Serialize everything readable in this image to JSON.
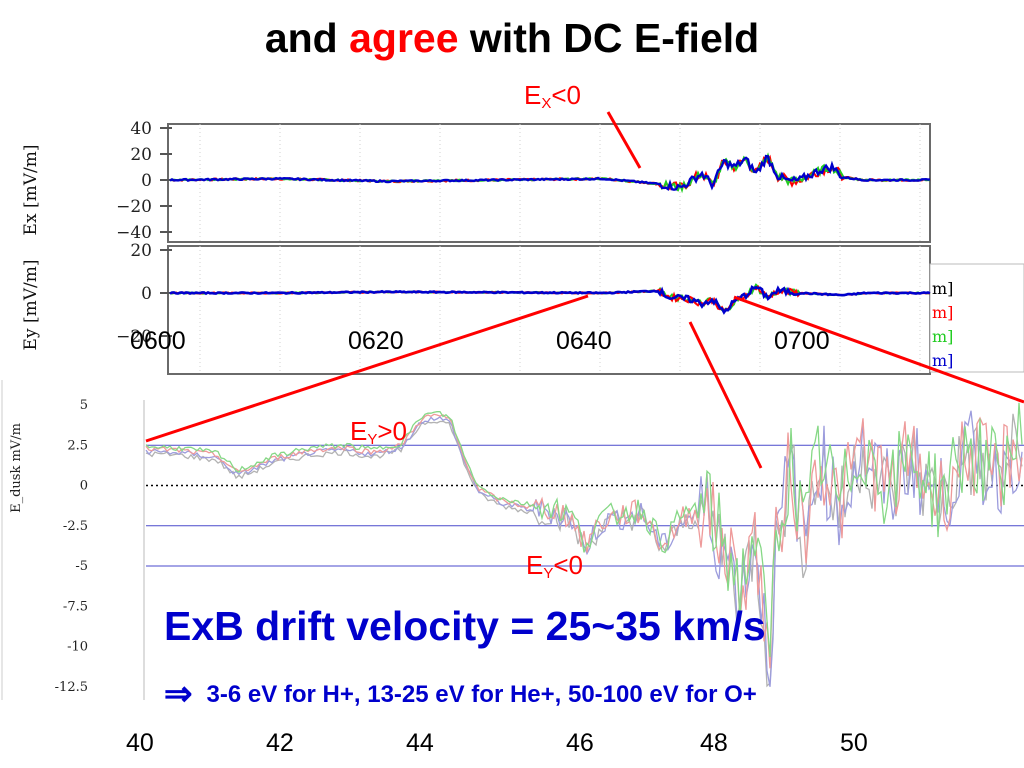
{
  "title": {
    "before": "and ",
    "highlight": "agree",
    "after": " with DC E-field"
  },
  "colors": {
    "red": "#ff0000",
    "blue": "#0000cc",
    "green": "#22cc22",
    "navy": "#1a1aa0",
    "refline": "#4a4acc"
  },
  "annotations": {
    "ex_neg": {
      "main": "E",
      "sub": "X",
      "rest": "<0"
    },
    "ey_pos": {
      "main": "E",
      "sub": "Y",
      "rest": ">0"
    },
    "ey_neg": {
      "main": "E",
      "sub": "Y",
      "rest": "<0"
    }
  },
  "headline": "ExB drift velocity = 25~35 km/s",
  "subline": {
    "arrow": "⇒",
    "text": "3-6 eV for H+, 13-25 eV for He+, 50-100 eV for O+"
  },
  "chart_data": [
    {
      "type": "line",
      "ylabel": "Ex [mV/m]",
      "ylim": [
        -40,
        40
      ],
      "yticks": [
        "40",
        "20",
        "0",
        "−20",
        "−40"
      ],
      "x": [
        "0600",
        "0620",
        "0640",
        "0700"
      ],
      "grid": true,
      "series_colors": [
        "#ff0000",
        "#22cc22",
        "#0000cc"
      ],
      "trace": [
        [
          0,
          0
        ],
        [
          10,
          1
        ],
        [
          20,
          -1
        ],
        [
          30,
          0
        ],
        [
          40,
          1
        ],
        [
          45,
          -3
        ],
        [
          47,
          -6
        ],
        [
          49,
          5
        ],
        [
          50,
          -4
        ],
        [
          51,
          14
        ],
        [
          52,
          10
        ],
        [
          53,
          16
        ],
        [
          54,
          5
        ],
        [
          55,
          18
        ],
        [
          56,
          3
        ],
        [
          57,
          -1
        ],
        [
          58,
          0
        ],
        [
          60,
          8
        ],
        [
          61,
          10
        ],
        [
          62,
          2
        ],
        [
          64,
          0
        ],
        [
          70,
          0
        ]
      ]
    },
    {
      "type": "line",
      "ylabel": "Ey [mV/m]",
      "ylim": [
        -20,
        20
      ],
      "yticks": [
        "20",
        "0",
        "−20"
      ],
      "x": [
        "0600",
        "0620",
        "0640",
        "0700"
      ],
      "grid": true,
      "legend_fragments": [
        "m]",
        "m]",
        "m]",
        "m]"
      ],
      "legend_colors": [
        "#000000",
        "#ff0000",
        "#22cc22",
        "#0000cc"
      ],
      "trace": [
        [
          0,
          0
        ],
        [
          10,
          0
        ],
        [
          20,
          0.5
        ],
        [
          30,
          0.3
        ],
        [
          40,
          0
        ],
        [
          45,
          1
        ],
        [
          46,
          -2
        ],
        [
          48,
          -3
        ],
        [
          49,
          -5
        ],
        [
          50,
          -3
        ],
        [
          51,
          -9
        ],
        [
          52,
          -4
        ],
        [
          53,
          -1
        ],
        [
          54,
          3
        ],
        [
          55,
          -2
        ],
        [
          56,
          1
        ],
        [
          58,
          0
        ],
        [
          62,
          -1
        ],
        [
          64,
          0
        ],
        [
          70,
          0
        ]
      ]
    },
    {
      "type": "line",
      "ylabel": "E_dusk mV/m",
      "ylim": [
        -12.5,
        5
      ],
      "yticks": [
        "5",
        "2.5",
        "0",
        "-2.5",
        "-5",
        "-7.5",
        "-10",
        "-12.5"
      ],
      "x": [
        "40",
        "42",
        "44",
        "46",
        "48",
        "50"
      ],
      "reference_lines": [
        2.5,
        0,
        -2.5,
        -5
      ],
      "series_colors": [
        "#b2b2b2",
        "#9c9cdd",
        "#ee9a9a",
        "#86d886"
      ],
      "trace": [
        [
          40,
          2.2
        ],
        [
          40.5,
          2.1
        ],
        [
          41,
          1.8
        ],
        [
          41.3,
          0.7
        ],
        [
          41.8,
          1.6
        ],
        [
          42.3,
          2.1
        ],
        [
          42.8,
          2.3
        ],
        [
          43.2,
          2.0
        ],
        [
          43.6,
          2.4
        ],
        [
          43.9,
          4.1
        ],
        [
          44.1,
          4.3
        ],
        [
          44.3,
          4.0
        ],
        [
          44.5,
          1.5
        ],
        [
          44.7,
          -0.3
        ],
        [
          45.0,
          -1.0
        ],
        [
          45.4,
          -1.4
        ],
        [
          45.7,
          -1.5
        ],
        [
          46.0,
          -2.0
        ],
        [
          46.2,
          -3.8
        ],
        [
          46.4,
          -2.4
        ],
        [
          46.7,
          -1.9
        ],
        [
          47.0,
          -1.7
        ],
        [
          47.3,
          -3.8
        ],
        [
          47.6,
          -2.0
        ],
        [
          47.9,
          -1.5
        ],
        [
          48.2,
          -4.2
        ],
        [
          48.4,
          -6.5
        ],
        [
          48.6,
          -3.0
        ],
        [
          48.8,
          -11.0
        ],
        [
          48.9,
          -4.0
        ],
        [
          49.1,
          1.5
        ],
        [
          49.3,
          -3.5
        ],
        [
          49.5,
          2.0
        ],
        [
          49.8,
          -1.5
        ],
        [
          50.1,
          2.5
        ],
        [
          50.5,
          -0.5
        ],
        [
          50.8,
          1.8
        ],
        [
          51.2,
          -1.0
        ],
        [
          51.6,
          2.2
        ],
        [
          52.0,
          0.5
        ],
        [
          52.3,
          2.5
        ],
        [
          52.8,
          3.5
        ]
      ]
    }
  ]
}
